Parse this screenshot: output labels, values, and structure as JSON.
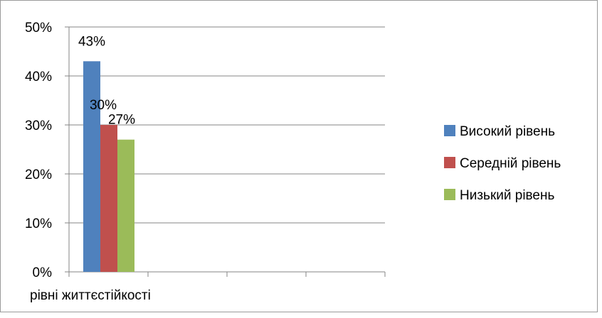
{
  "chart_data": {
    "type": "bar",
    "categories": [
      "рівні життєстійкості",
      "",
      "",
      ""
    ],
    "series": [
      {
        "name": "Високий рівень",
        "color": "#4f81bd",
        "values": [
          43,
          null,
          null,
          null
        ],
        "labels": [
          "43%",
          "",
          "",
          ""
        ]
      },
      {
        "name": "Середній рівень",
        "color": "#c0504d",
        "values": [
          30,
          null,
          null,
          null
        ],
        "labels": [
          "30%",
          "",
          "",
          ""
        ]
      },
      {
        "name": "Низький рівень",
        "color": "#9bbb59",
        "values": [
          27,
          null,
          null,
          null
        ],
        "labels": [
          "27%",
          "",
          "",
          ""
        ]
      }
    ],
    "y_ticks": [
      "0%",
      "10%",
      "20%",
      "30%",
      "40%",
      "50%"
    ],
    "ylim": [
      0,
      50
    ],
    "grid": true,
    "legend_position": "right"
  }
}
